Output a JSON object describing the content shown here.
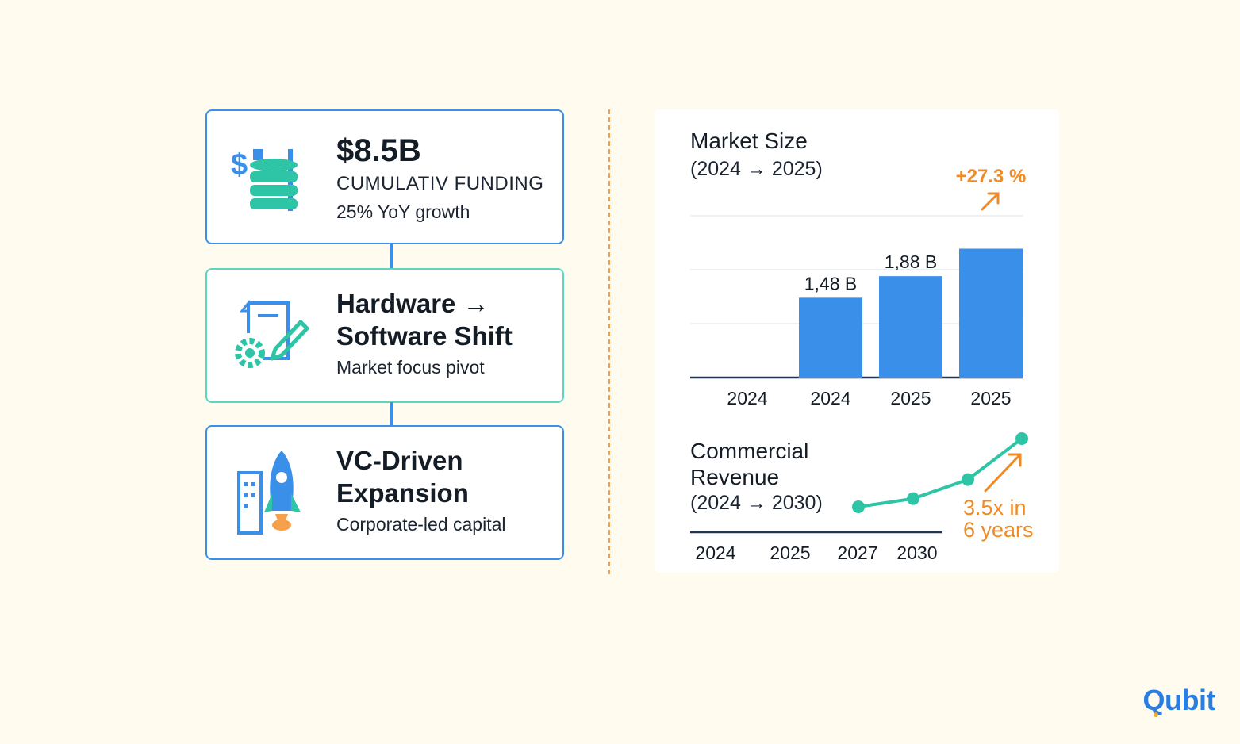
{
  "cards": [
    {
      "title": "$8.5B",
      "caption": "CUMULATIV FUNDING",
      "subtitle": "25% YoY growth",
      "icon": "money-database-icon"
    },
    {
      "title_line1": "Hardware →",
      "title_line2": "Software Shift",
      "subtitle": "Market focus pivot",
      "icon": "document-gear-pen-icon"
    },
    {
      "title_line1": "VC-Driven",
      "title_line2": "Expansion",
      "subtitle": "Corporate-led capital",
      "icon": "rocket-building-icon"
    }
  ],
  "colors": {
    "blue": "#3a8fe8",
    "teal": "#2ec4a6",
    "orange": "#f08a24",
    "background": "#fffcef"
  },
  "chart_data": [
    {
      "type": "bar",
      "title": "Market Size",
      "subtitle": "(2024 → 2025)",
      "categories": [
        "2024",
        "2024",
        "2025",
        "2025"
      ],
      "values": [
        0,
        1.48,
        1.88,
        2.39
      ],
      "data_labels": [
        "",
        "1,48 B",
        "1,88 B",
        ""
      ],
      "ylim": [
        0,
        3.0
      ],
      "grid": true,
      "annotation": "+27.3 %"
    },
    {
      "type": "line",
      "title_line1": "Commercial",
      "title_line2": "Revenue",
      "subtitle": "(2024 → 2030)",
      "tick_labels": [
        "2024",
        "2025",
        "2027",
        "2030"
      ],
      "values": [
        1.0,
        1.3,
        2.0,
        3.5
      ],
      "annotation_line1": "3.5x in",
      "annotation_line2": "6 years"
    }
  ],
  "logo": "Qubit"
}
